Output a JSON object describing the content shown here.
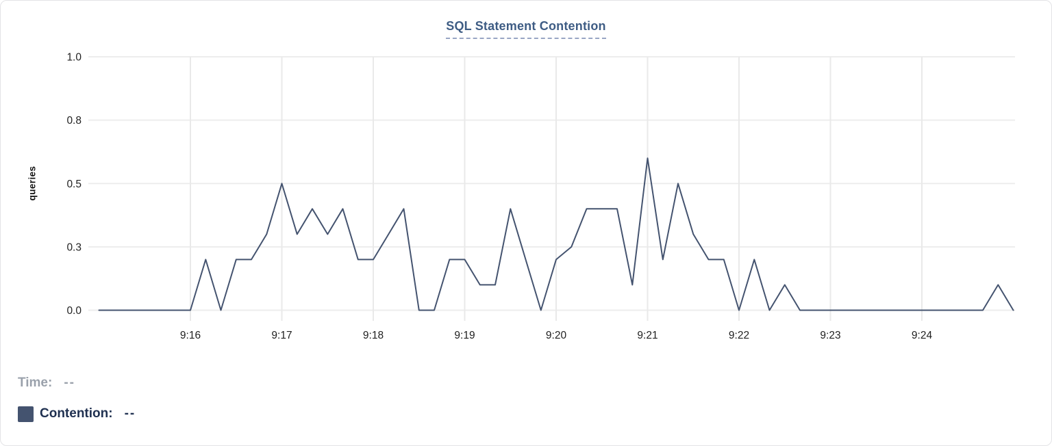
{
  "header": {
    "title": "SQL Statement Contention"
  },
  "tooltip": {
    "time_label": "Time:",
    "time_value": "--",
    "series_label": "Contention:",
    "series_value": "--"
  },
  "chart_data": {
    "type": "line",
    "title": "SQL Statement Contention",
    "xlabel": "",
    "ylabel": "queries",
    "x_start": "9:15:00",
    "x_end": "9:25:00",
    "interval_seconds": 10,
    "x_ticks": [
      "9:16",
      "9:17",
      "9:18",
      "9:19",
      "9:20",
      "9:21",
      "9:22",
      "9:23",
      "9:24"
    ],
    "y_ticks": [
      {
        "label": "0.0",
        "value": 0
      },
      {
        "label": "0.3",
        "value": 0.25
      },
      {
        "label": "0.5",
        "value": 0.5
      },
      {
        "label": "0.8",
        "value": 0.75
      },
      {
        "label": "1.0",
        "value": 1
      }
    ],
    "ylim": [
      0,
      1
    ],
    "grid": true,
    "legend_position": "bottom-left",
    "series": [
      {
        "name": "Contention",
        "color": "#44536f",
        "values": [
          0,
          0,
          0,
          0,
          0,
          0,
          0,
          0.2,
          0,
          0.2,
          0.2,
          0.3,
          0.5,
          0.3,
          0.4,
          0.3,
          0.4,
          0.2,
          0.2,
          0.3,
          0.4,
          0,
          0,
          0.2,
          0.2,
          0.1,
          0.1,
          0.4,
          0.2,
          0,
          0.2,
          0.25,
          0.4,
          0.4,
          0.4,
          0.1,
          0.6,
          0.2,
          0.5,
          0.3,
          0.2,
          0.2,
          0,
          0.2,
          0,
          0.1,
          0,
          0,
          0,
          0,
          0,
          0,
          0,
          0,
          0,
          0,
          0,
          0,
          0,
          0.1,
          0
        ]
      }
    ]
  },
  "colors": {
    "title": "#3e5c84",
    "title_underline": "#98a5c4",
    "series": "#44536f",
    "gridline": "#ededed",
    "axis_text": "#1f1f1f",
    "muted_text": "#9aa1ab",
    "legend_text": "#1f3050"
  }
}
